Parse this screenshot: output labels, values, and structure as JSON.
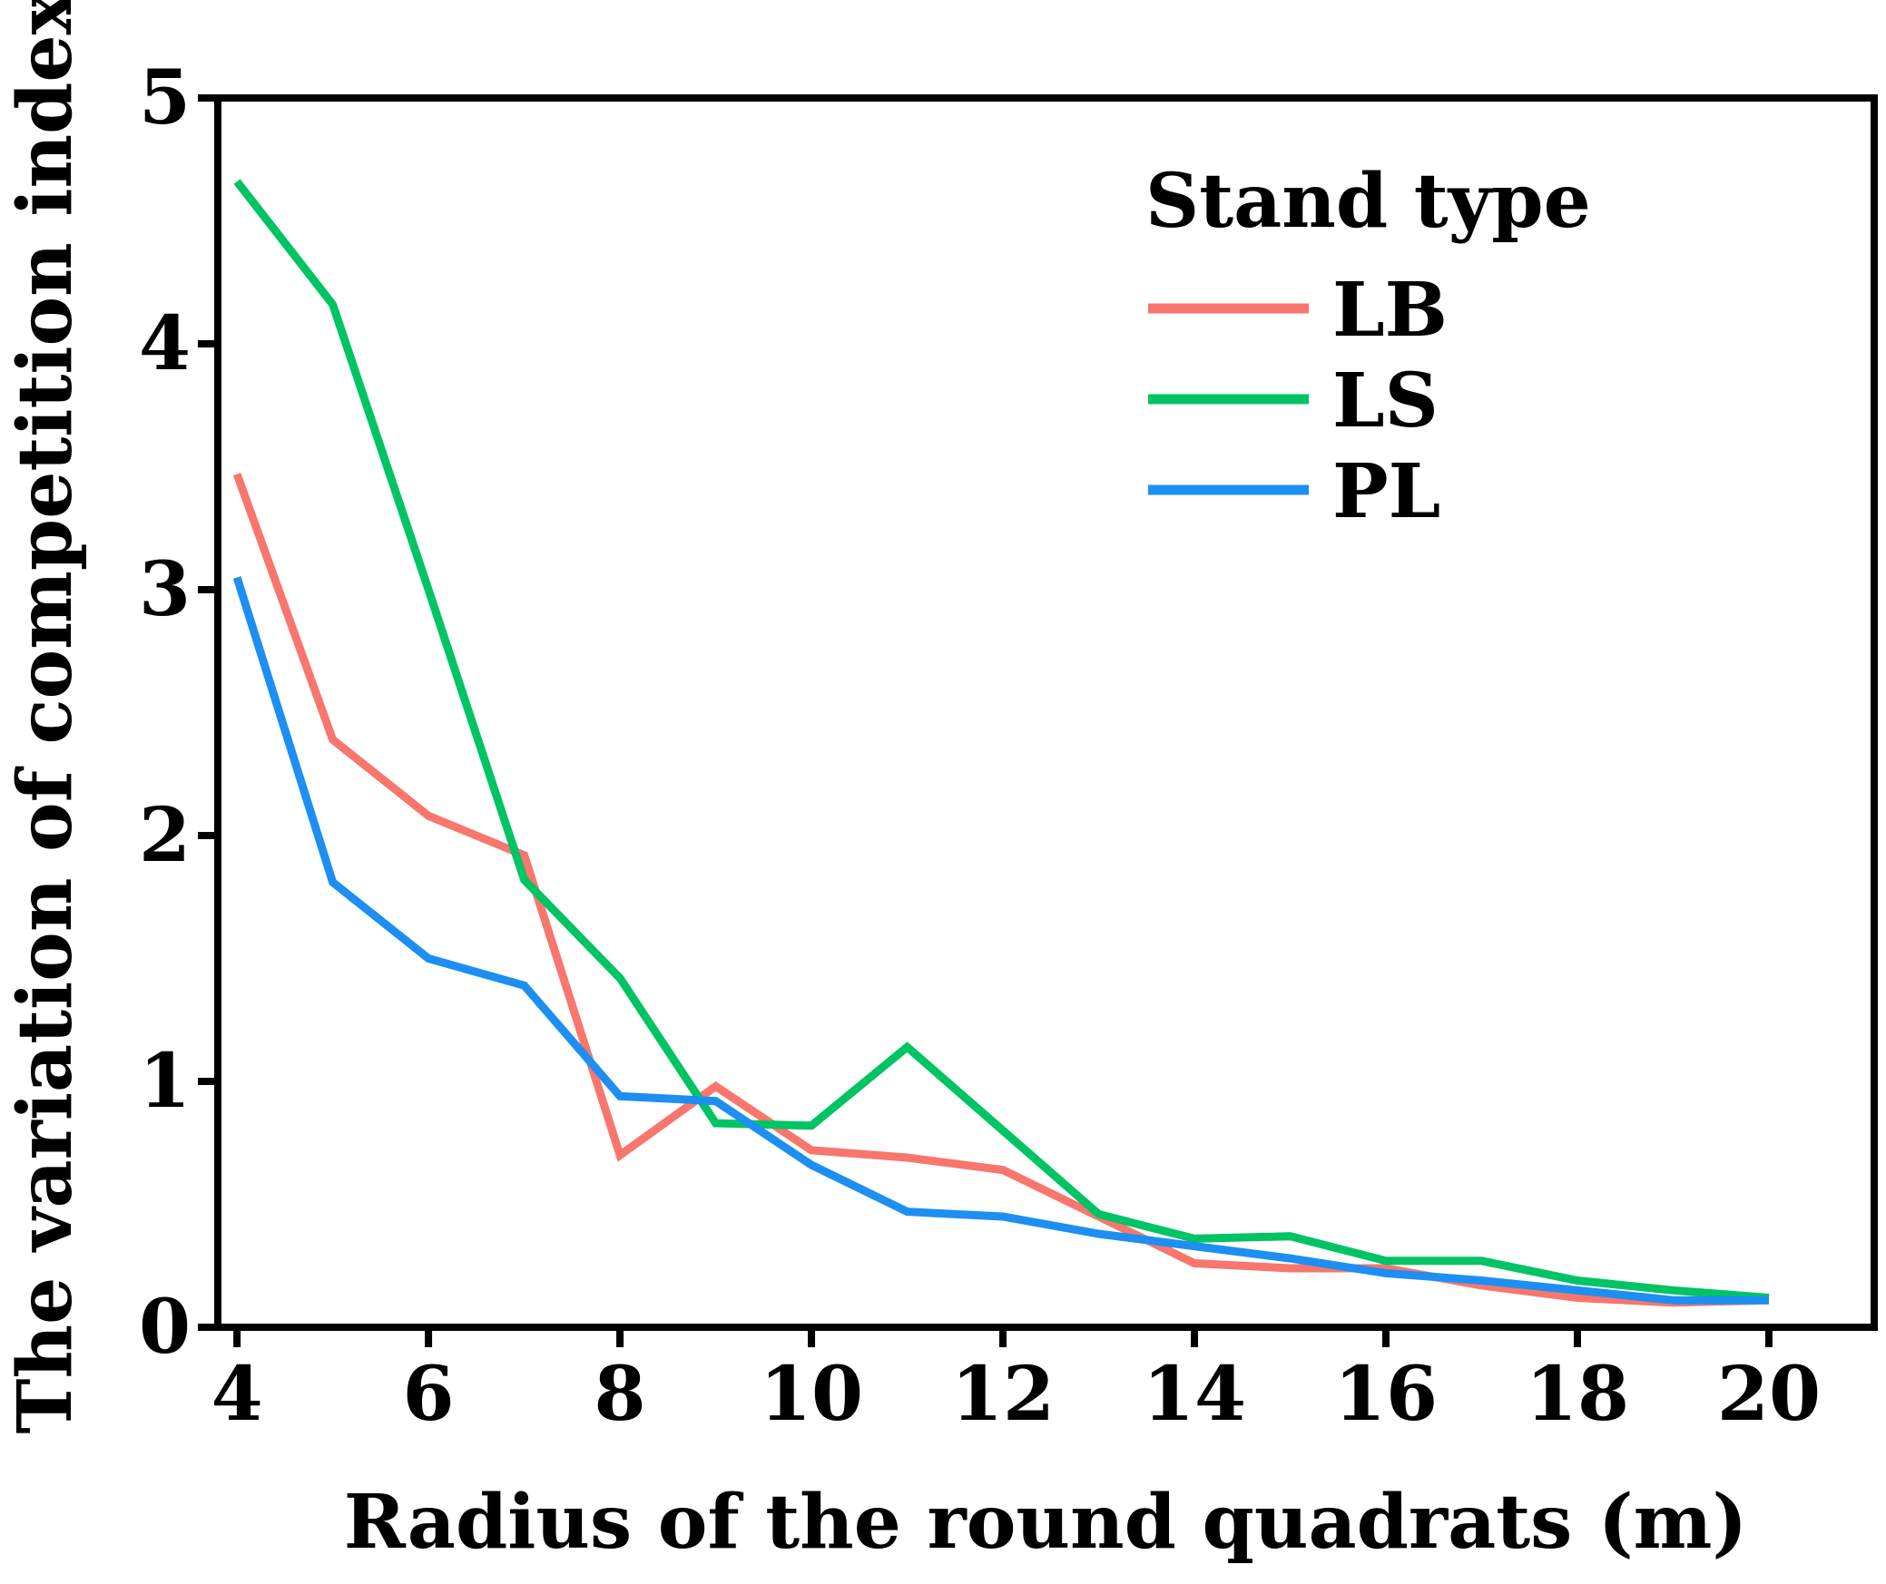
{
  "chart_data": {
    "type": "line",
    "title": "",
    "xlabel": "Radius of the round quadrats (m)",
    "ylabel": "The variation of competition index",
    "xlim": [
      3.8,
      21.1
    ],
    "ylim": [
      0,
      5
    ],
    "x_ticks": [
      4,
      6,
      8,
      10,
      12,
      14,
      16,
      18,
      20
    ],
    "y_ticks": [
      0,
      1,
      2,
      3,
      4,
      5
    ],
    "x": [
      4,
      5,
      6,
      7,
      8,
      9,
      10,
      11,
      12,
      13,
      14,
      15,
      16,
      17,
      18,
      19,
      20
    ],
    "series": [
      {
        "name": "LB",
        "color": "#F8766D",
        "values": [
          3.47,
          2.39,
          2.08,
          1.92,
          0.7,
          0.98,
          0.72,
          0.69,
          0.64,
          0.45,
          0.26,
          0.24,
          0.24,
          0.17,
          0.12,
          0.1,
          0.11
        ]
      },
      {
        "name": "LS",
        "color": "#00C464",
        "values": [
          4.66,
          4.16,
          3.0,
          1.82,
          1.42,
          0.83,
          0.82,
          1.14,
          0.8,
          0.46,
          0.36,
          0.37,
          0.27,
          0.27,
          0.19,
          0.15,
          0.12
        ]
      },
      {
        "name": "PL",
        "color": "#1D8FF2",
        "values": [
          3.05,
          1.81,
          1.5,
          1.39,
          0.94,
          0.92,
          0.66,
          0.47,
          0.45,
          0.38,
          0.33,
          0.28,
          0.22,
          0.19,
          0.15,
          0.11,
          0.11
        ]
      }
    ],
    "legend": {
      "title": "Stand type",
      "position": "top-right"
    },
    "grid": false
  }
}
